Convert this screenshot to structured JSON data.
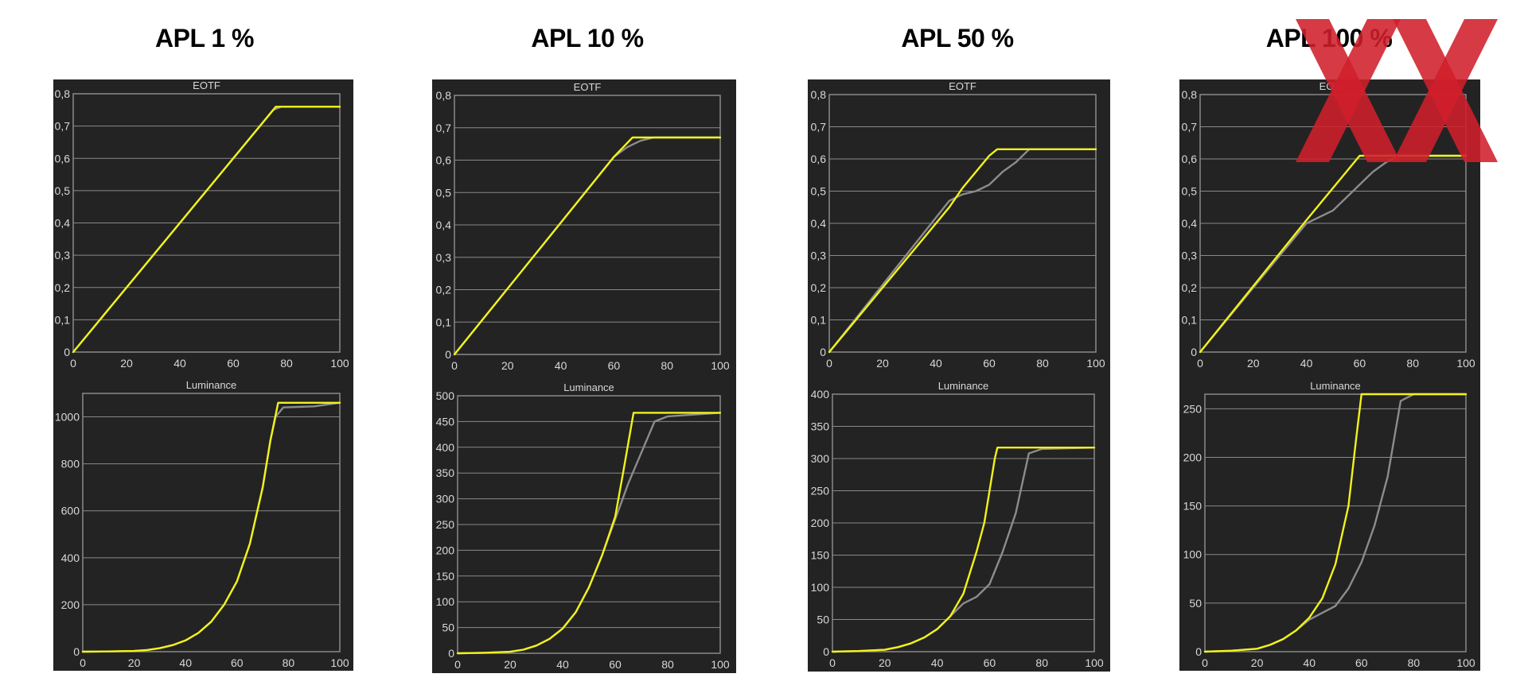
{
  "columns": [
    {
      "title": "APL 1 %"
    },
    {
      "title": "APL 10 %"
    },
    {
      "title": "APL 50 %"
    },
    {
      "title": "APL 100 %"
    }
  ],
  "colors": {
    "target": "#f2f21a",
    "measured": "#8c8c8c",
    "grid": "#8a8a8a",
    "panel": "#232323",
    "text": "#d8d8d8",
    "logo": "#d01f2b"
  },
  "logo": {
    "name": "hardwareluxx-xx-logo"
  },
  "chart_data": [
    {
      "type": "line",
      "title": "EOTF",
      "apl": "APL 1 %",
      "xlim": [
        0,
        100
      ],
      "ylim": [
        0,
        0.8
      ],
      "xticks": [
        "0",
        "20",
        "40",
        "60",
        "80",
        "100"
      ],
      "yticks": [
        "0",
        "0,1",
        "0,2",
        "0,3",
        "0,4",
        "0,5",
        "0,6",
        "0,7",
        "0,8"
      ],
      "series": [
        {
          "color": "#f2f21a",
          "x": [
            0,
            76,
            100
          ],
          "y": [
            0,
            0.76,
            0.76
          ]
        },
        {
          "color": "#8c8c8c",
          "x": [
            0,
            75,
            78,
            100
          ],
          "y": [
            0,
            0.75,
            0.76,
            0.76
          ]
        }
      ]
    },
    {
      "type": "line",
      "title": "Luminance",
      "apl": "APL 1 %",
      "xlim": [
        0,
        100
      ],
      "ylim": [
        0,
        1100
      ],
      "xticks": [
        "0",
        "20",
        "40",
        "60",
        "80",
        "100"
      ],
      "yticks": [
        "0",
        "200",
        "400",
        "600",
        "800",
        "1000"
      ],
      "series": [
        {
          "color": "#f2f21a",
          "x": [
            0,
            10,
            20,
            25,
            30,
            35,
            40,
            45,
            50,
            55,
            60,
            65,
            70,
            73,
            76,
            100
          ],
          "y": [
            0,
            1,
            3,
            7,
            15,
            28,
            48,
            80,
            128,
            200,
            300,
            460,
            700,
            900,
            1060,
            1060
          ]
        },
        {
          "color": "#8c8c8c",
          "x": [
            0,
            10,
            20,
            25,
            30,
            35,
            40,
            45,
            50,
            55,
            60,
            65,
            70,
            73,
            75,
            78,
            90,
            100
          ],
          "y": [
            0,
            1,
            3,
            7,
            15,
            28,
            48,
            80,
            128,
            200,
            300,
            460,
            700,
            900,
            1000,
            1040,
            1045,
            1060
          ]
        }
      ]
    },
    {
      "type": "line",
      "title": "EOTF",
      "apl": "APL 10 %",
      "xlim": [
        0,
        100
      ],
      "ylim": [
        0,
        0.8
      ],
      "xticks": [
        "0",
        "20",
        "40",
        "60",
        "80",
        "100"
      ],
      "yticks": [
        "0",
        "0,1",
        "0,2",
        "0,3",
        "0,4",
        "0,5",
        "0,6",
        "0,7",
        "0,8"
      ],
      "series": [
        {
          "color": "#f2f21a",
          "x": [
            0,
            60,
            67,
            100
          ],
          "y": [
            0,
            0.61,
            0.67,
            0.67
          ]
        },
        {
          "color": "#8c8c8c",
          "x": [
            0,
            60,
            65,
            70,
            75,
            80,
            100
          ],
          "y": [
            0,
            0.61,
            0.64,
            0.66,
            0.67,
            0.67,
            0.67
          ]
        }
      ]
    },
    {
      "type": "line",
      "title": "Luminance",
      "apl": "APL 10 %",
      "xlim": [
        0,
        100
      ],
      "ylim": [
        0,
        500
      ],
      "xticks": [
        "0",
        "20",
        "40",
        "60",
        "80",
        "100"
      ],
      "yticks": [
        "0",
        "50",
        "100",
        "150",
        "200",
        "250",
        "300",
        "350",
        "400",
        "450",
        "500"
      ],
      "series": [
        {
          "color": "#f2f21a",
          "x": [
            0,
            10,
            20,
            25,
            30,
            35,
            40,
            45,
            50,
            55,
            60,
            63,
            67,
            100
          ],
          "y": [
            0,
            1,
            3,
            7,
            15,
            28,
            48,
            80,
            128,
            190,
            265,
            350,
            467,
            467
          ]
        },
        {
          "color": "#8c8c8c",
          "x": [
            0,
            10,
            20,
            25,
            30,
            35,
            40,
            45,
            50,
            55,
            60,
            65,
            70,
            75,
            80,
            100
          ],
          "y": [
            0,
            1,
            3,
            7,
            15,
            28,
            48,
            80,
            128,
            190,
            260,
            330,
            390,
            450,
            460,
            467
          ]
        }
      ]
    },
    {
      "type": "line",
      "title": "EOTF",
      "apl": "APL 50 %",
      "xlim": [
        0,
        100
      ],
      "ylim": [
        0,
        0.8
      ],
      "xticks": [
        "0",
        "20",
        "40",
        "60",
        "80",
        "100"
      ],
      "yticks": [
        "0",
        "0,1",
        "0,2",
        "0,3",
        "0,4",
        "0,5",
        "0,6",
        "0,7",
        "0,8"
      ],
      "series": [
        {
          "color": "#f2f21a",
          "x": [
            0,
            45,
            50,
            55,
            60,
            63,
            100
          ],
          "y": [
            0,
            0.45,
            0.51,
            0.56,
            0.61,
            0.63,
            0.63
          ]
        },
        {
          "color": "#8c8c8c",
          "x": [
            0,
            45,
            50,
            55,
            60,
            65,
            70,
            75,
            100
          ],
          "y": [
            0,
            0.47,
            0.49,
            0.5,
            0.52,
            0.56,
            0.59,
            0.63,
            0.63
          ]
        }
      ]
    },
    {
      "type": "line",
      "title": "Luminance",
      "apl": "APL 50 %",
      "xlim": [
        0,
        100
      ],
      "ylim": [
        0,
        400
      ],
      "xticks": [
        "0",
        "20",
        "40",
        "60",
        "80",
        "100"
      ],
      "yticks": [
        "0",
        "50",
        "100",
        "150",
        "200",
        "250",
        "300",
        "350",
        "400"
      ],
      "series": [
        {
          "color": "#f2f21a",
          "x": [
            0,
            10,
            20,
            25,
            30,
            35,
            40,
            45,
            50,
            55,
            58,
            60,
            62,
            63,
            100
          ],
          "y": [
            0,
            1,
            3,
            7,
            13,
            22,
            35,
            55,
            90,
            155,
            200,
            250,
            300,
            317,
            317
          ]
        },
        {
          "color": "#8c8c8c",
          "x": [
            0,
            10,
            20,
            25,
            30,
            35,
            40,
            45,
            50,
            55,
            60,
            65,
            70,
            75,
            80,
            100
          ],
          "y": [
            0,
            1,
            3,
            7,
            13,
            22,
            35,
            55,
            75,
            85,
            105,
            155,
            215,
            308,
            315,
            317
          ]
        }
      ]
    },
    {
      "type": "line",
      "title": "EOTF",
      "apl": "APL 100 %",
      "xlim": [
        0,
        100
      ],
      "ylim": [
        0,
        0.8
      ],
      "xticks": [
        "0",
        "20",
        "40",
        "60",
        "80",
        "100"
      ],
      "yticks": [
        "0",
        "0,1",
        "0,2",
        "0,3",
        "0,4",
        "0,5",
        "0,6",
        "0,7",
        "0,8"
      ],
      "series": [
        {
          "color": "#f2f21a",
          "x": [
            0,
            40,
            45,
            50,
            55,
            60,
            100
          ],
          "y": [
            0,
            0.41,
            0.46,
            0.51,
            0.56,
            0.61,
            0.61
          ]
        },
        {
          "color": "#8c8c8c",
          "x": [
            0,
            40,
            45,
            50,
            55,
            60,
            65,
            70,
            75,
            100
          ],
          "y": [
            0,
            0.4,
            0.42,
            0.44,
            0.48,
            0.52,
            0.56,
            0.59,
            0.61,
            0.61
          ]
        }
      ]
    },
    {
      "type": "line",
      "title": "Luminance",
      "apl": "APL 100 %",
      "xlim": [
        0,
        100
      ],
      "ylim": [
        0,
        265
      ],
      "xticks": [
        "0",
        "20",
        "40",
        "60",
        "80",
        "100"
      ],
      "yticks": [
        "0",
        "50",
        "100",
        "150",
        "200",
        "250"
      ],
      "series": [
        {
          "color": "#f2f21a",
          "x": [
            0,
            10,
            20,
            25,
            30,
            35,
            40,
            45,
            50,
            55,
            58,
            60,
            100
          ],
          "y": [
            0,
            1,
            3,
            7,
            13,
            22,
            35,
            55,
            90,
            150,
            220,
            265,
            265
          ]
        },
        {
          "color": "#8c8c8c",
          "x": [
            0,
            10,
            20,
            25,
            30,
            35,
            40,
            45,
            50,
            55,
            60,
            65,
            70,
            75,
            80,
            100
          ],
          "y": [
            0,
            1,
            3,
            7,
            13,
            22,
            33,
            40,
            47,
            65,
            92,
            130,
            180,
            258,
            265,
            265
          ]
        }
      ]
    }
  ]
}
